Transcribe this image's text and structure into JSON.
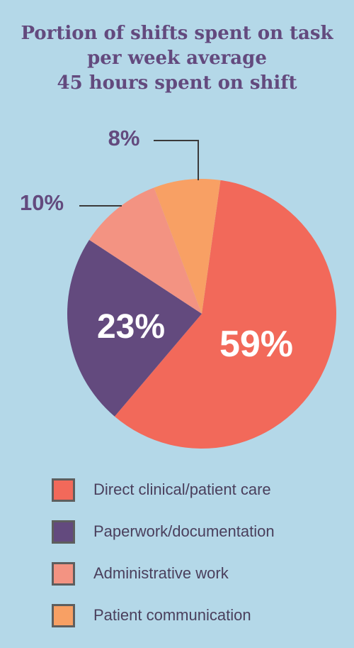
{
  "chart_data": {
    "type": "pie",
    "title_lines": [
      "Portion of shifts spent on task",
      "per week average",
      "45 hours spent on shift"
    ],
    "slices": [
      {
        "label": "Direct clinical/patient care",
        "value": 59,
        "display": "59%",
        "color": "#f2695a"
      },
      {
        "label": "Paperwork/documentation",
        "value": 23,
        "display": "23%",
        "color": "#634a7e"
      },
      {
        "label": "Administrative work",
        "value": 10,
        "display": "10%",
        "color": "#f39382"
      },
      {
        "label": "Patient communication",
        "value": 8,
        "display": "8%",
        "color": "#f8a064"
      }
    ],
    "legend_position": "bottom"
  },
  "colors": {
    "background": "#b4d8e8",
    "title": "#634a7e",
    "inside_label": "#ffffff",
    "outside_label": "#634a7e",
    "leader_line": "#3a3a3a"
  }
}
